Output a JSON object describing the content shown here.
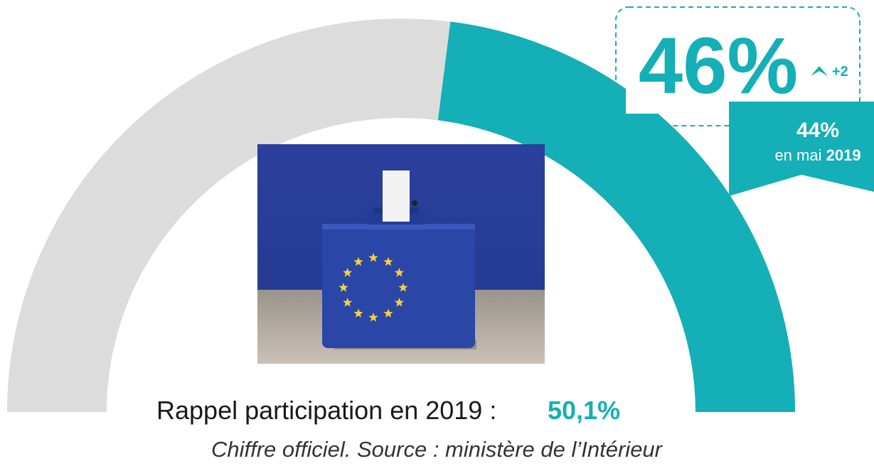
{
  "chart_data": {
    "type": "gauge",
    "ylim": [
      0,
      100
    ],
    "value": 46,
    "value_label": "46%",
    "color": "#14afb7",
    "track_color": "#dcdcdc",
    "change": "+2",
    "previous_label": "44%",
    "previous_text": "en mai",
    "previous_year": "2019",
    "recall_text": "Rappel participation en 2019 :",
    "recall_value_label": "50,1%",
    "source": "Chiffre officiel. Source : ministère de l’Intérieur"
  }
}
